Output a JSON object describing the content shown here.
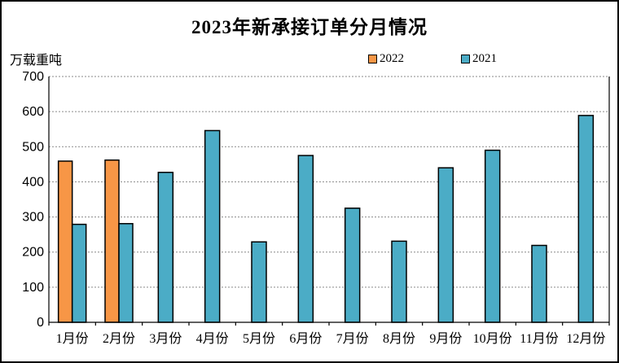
{
  "title": "2023年新承接订单分月情况",
  "unit_label": "万载重吨",
  "legend": {
    "items": [
      {
        "label": "2022",
        "color": "#F79646"
      },
      {
        "label": "2021",
        "color": "#4BACC6"
      }
    ]
  },
  "colors": {
    "bar_border": "#000000",
    "gridline": "#8a8a8a",
    "axis": "#000000",
    "background": "#FFFFFF",
    "orange_series": "#F79646",
    "teal_series": "#4BACC6"
  },
  "chart_data": {
    "type": "bar",
    "title": "2023年新承接订单分月情况",
    "ylabel": "万载重吨",
    "xlabel": "",
    "categories": [
      "1月份",
      "2月份",
      "3月份",
      "4月份",
      "5月份",
      "6月份",
      "7月份",
      "8月份",
      "9月份",
      "10月份",
      "11月份",
      "12月份"
    ],
    "series": [
      {
        "name": "2022",
        "color": "#F79646",
        "values": [
          459,
          462,
          null,
          null,
          null,
          null,
          null,
          null,
          null,
          null,
          null,
          null
        ]
      },
      {
        "name": "2021",
        "color": "#4BACC6",
        "values": [
          279,
          281,
          427,
          546,
          229,
          475,
          325,
          231,
          440,
          490,
          219,
          589
        ]
      }
    ],
    "ylim": [
      0,
      700
    ],
    "ytick_step": 100,
    "grid": true,
    "legend_position": "top"
  }
}
